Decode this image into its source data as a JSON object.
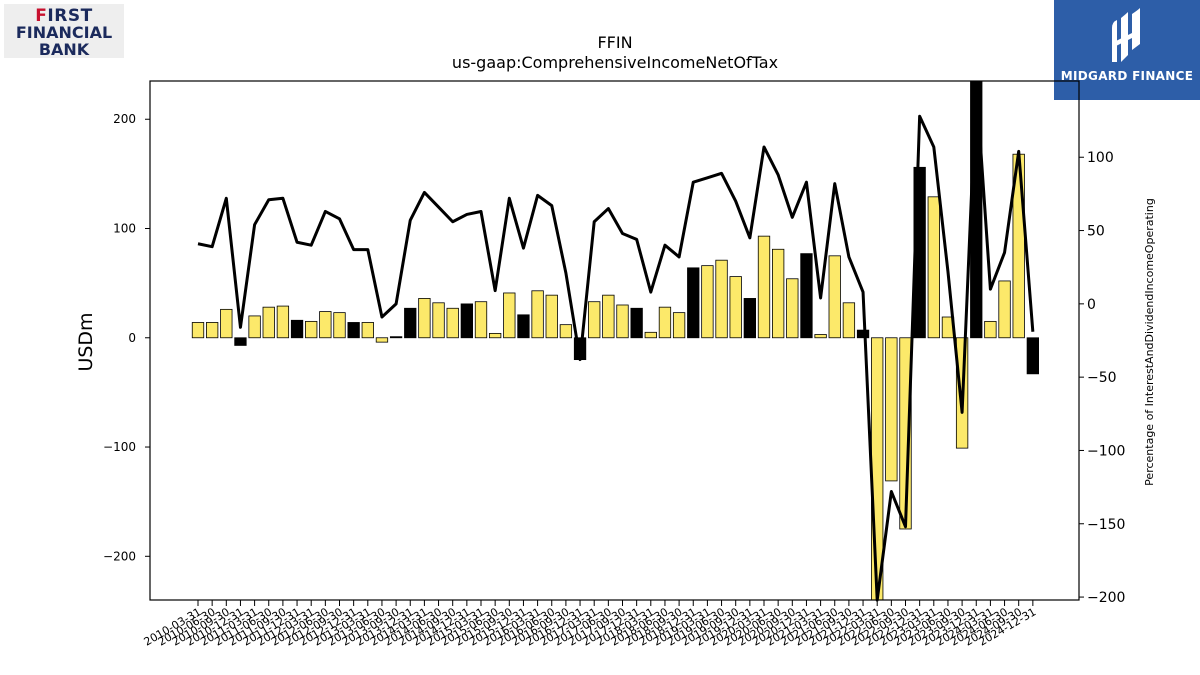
{
  "logos": {
    "left": {
      "text_line1": "FIRST",
      "text_line2": "FINANCIAL",
      "text_line3": "BANK"
    },
    "right": {
      "text": "MIDGARD FINANCE"
    }
  },
  "colors": {
    "bar_yellow": "#fce96a",
    "bar_black": "#000000",
    "line": "#000000",
    "logo_right_bg": "#2d5ea8",
    "logo_left_text": "#1b2a5c",
    "logo_left_accent": "#c8102e"
  },
  "chart_data": {
    "type": "bar",
    "title": "FFIN",
    "subtitle": "us-gaap:ComprehensiveIncomeNetOfTax",
    "ylabel": "USDm",
    "y2label": "Percentage of InterestAndDividendIncomeOperating",
    "ylim": [
      -240,
      235
    ],
    "y2lim": [
      -202,
      152
    ],
    "yticks": [
      -200,
      -100,
      0,
      100,
      200
    ],
    "y2ticks": [
      -200,
      -150,
      -100,
      -50,
      0,
      50,
      100
    ],
    "grid": false,
    "categories": [
      "2010-03-31",
      "2010-06-30",
      "2010-09-30",
      "2010-12-31",
      "2011-03-31",
      "2011-06-30",
      "2011-09-30",
      "2011-12-31",
      "2012-03-31",
      "2012-06-30",
      "2012-09-30",
      "2012-12-31",
      "2013-03-31",
      "2013-06-30",
      "2013-09-30",
      "2013-12-31",
      "2014-03-31",
      "2014-06-30",
      "2014-09-30",
      "2014-12-31",
      "2015-03-31",
      "2015-06-30",
      "2015-09-30",
      "2015-12-31",
      "2016-03-31",
      "2016-06-30",
      "2016-09-30",
      "2016-12-31",
      "2017-03-31",
      "2017-06-30",
      "2017-09-30",
      "2017-12-31",
      "2018-03-31",
      "2018-06-30",
      "2018-09-30",
      "2018-12-31",
      "2019-03-31",
      "2019-06-30",
      "2019-09-30",
      "2019-12-31",
      "2020-03-31",
      "2020-06-30",
      "2020-09-30",
      "2020-12-31",
      "2021-03-31",
      "2021-06-30",
      "2021-09-30",
      "2021-12-31",
      "2022-03-31",
      "2022-06-30",
      "2022-09-30",
      "2022-12-31",
      "2023-03-31",
      "2023-06-30",
      "2023-09-30",
      "2023-12-31",
      "2024-03-31",
      "2024-06-30",
      "2024-09-30",
      "2024-12-31"
    ],
    "series": [
      {
        "kind": "bar",
        "axis": "left",
        "values": [
          14,
          14,
          26,
          -7,
          20,
          28,
          29,
          16,
          15,
          24,
          23,
          14,
          14,
          -4,
          1,
          27,
          36,
          32,
          27,
          31,
          33,
          4,
          41,
          21,
          43,
          39,
          12,
          -20,
          33,
          39,
          30,
          27,
          5,
          28,
          23,
          64,
          66,
          71,
          56,
          36,
          93,
          81,
          54,
          77,
          3,
          75,
          32,
          7,
          -250,
          -131,
          -175,
          156,
          129,
          19,
          -101,
          237,
          15,
          52,
          168,
          -33
        ],
        "highlight": [
          0,
          0,
          0,
          1,
          0,
          0,
          0,
          1,
          0,
          0,
          0,
          1,
          0,
          0,
          1,
          1,
          0,
          0,
          0,
          1,
          0,
          0,
          0,
          1,
          0,
          0,
          0,
          1,
          0,
          0,
          0,
          1,
          0,
          0,
          0,
          1,
          0,
          0,
          0,
          1,
          0,
          0,
          0,
          1,
          0,
          0,
          0,
          1,
          0,
          0,
          0,
          1,
          0,
          0,
          0,
          1,
          0,
          0,
          0,
          1
        ]
      },
      {
        "kind": "line",
        "axis": "right",
        "values": [
          41,
          39,
          72,
          -16,
          54,
          71,
          72,
          42,
          40,
          63,
          58,
          37,
          37,
          -9,
          0,
          57,
          76,
          66,
          56,
          61,
          63,
          9,
          72,
          38,
          74,
          67,
          21,
          -38,
          56,
          65,
          48,
          44,
          8,
          40,
          32,
          83,
          86,
          89,
          70,
          45,
          107,
          88,
          59,
          83,
          4,
          82,
          32,
          8,
          -220,
          -128,
          -152,
          128,
          107,
          22,
          -74,
          150,
          10,
          35,
          104,
          -19
        ]
      }
    ]
  }
}
